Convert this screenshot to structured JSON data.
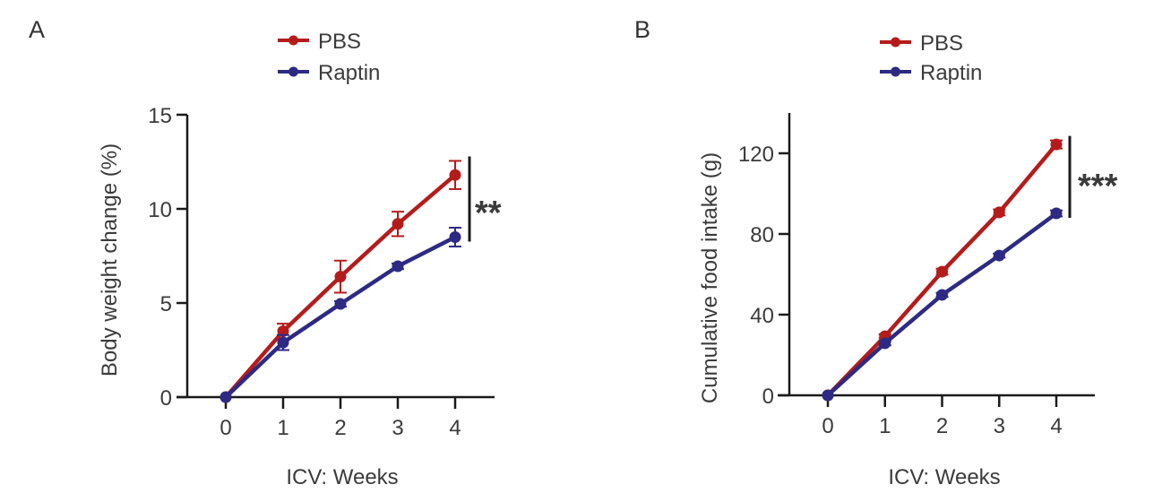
{
  "figure": {
    "panels": [
      "A",
      "B"
    ]
  },
  "chart_data": [
    {
      "panel": "A",
      "type": "line",
      "title": "",
      "xlabel": "ICV: Weeks",
      "ylabel": "Body weight change (%)",
      "x": [
        0,
        1,
        2,
        3,
        4
      ],
      "x_ticks": [
        "0",
        "1",
        "2",
        "3",
        "4"
      ],
      "y_ticks": [
        "0",
        "5",
        "10",
        "15"
      ],
      "y_tick_values": [
        0,
        5,
        10,
        15
      ],
      "ylim": [
        0,
        15
      ],
      "grid": false,
      "legend_position": "top-center",
      "significance": "**",
      "series": [
        {
          "name": "PBS",
          "color": "#b41c1c",
          "values": [
            0,
            3.5,
            6.4,
            9.2,
            11.8
          ],
          "errors": [
            0,
            0.4,
            0.85,
            0.65,
            0.75
          ]
        },
        {
          "name": "Raptin",
          "color": "#2e2a83",
          "values": [
            0,
            2.9,
            4.95,
            6.95,
            8.5
          ],
          "errors": [
            0,
            0.4,
            0.15,
            0.15,
            0.5
          ]
        }
      ]
    },
    {
      "panel": "B",
      "type": "line",
      "title": "",
      "xlabel": "ICV: Weeks",
      "ylabel": "Cumulative food intake (g)",
      "x": [
        0,
        1,
        2,
        3,
        4
      ],
      "x_ticks": [
        "0",
        "1",
        "2",
        "3",
        "4"
      ],
      "y_ticks": [
        "0",
        "40",
        "80",
        "120"
      ],
      "y_tick_values": [
        0,
        40,
        80,
        120
      ],
      "ylim": [
        0,
        140
      ],
      "grid": false,
      "legend_position": "top-center",
      "significance": "***",
      "series": [
        {
          "name": "PBS",
          "color": "#b41c1c",
          "values": [
            0,
            29.3,
            61.3,
            90.7,
            124.4
          ],
          "errors": [
            0,
            1,
            1.5,
            1.5,
            2
          ]
        },
        {
          "name": "Raptin",
          "color": "#2e2a83",
          "values": [
            0,
            25.8,
            49.8,
            69.3,
            90.2
          ],
          "errors": [
            0,
            1,
            1,
            1,
            1.5
          ]
        }
      ]
    }
  ]
}
